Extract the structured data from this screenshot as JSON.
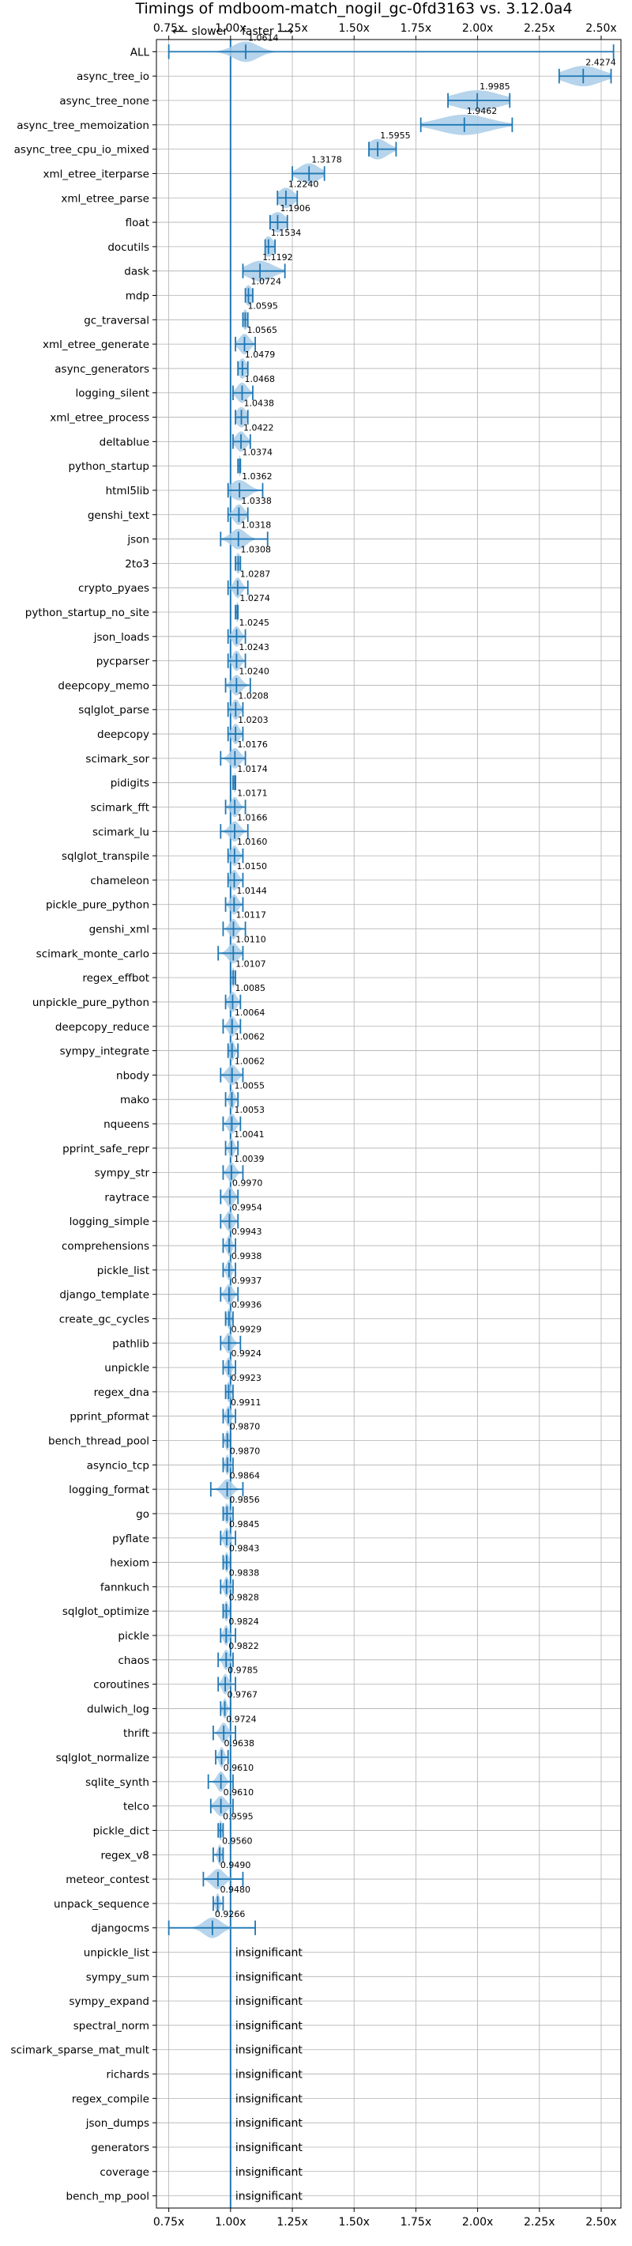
{
  "chart_data": {
    "type": "violin",
    "title": "Timings of mdboom-match_nogil_gc-0fd3163 vs. 3.12.0a4",
    "direction_labels": {
      "slower": "⟵ slower",
      "faster": "faster ⟶"
    },
    "xticks": [
      0.75,
      1.0,
      1.25,
      1.5,
      1.75,
      2.0,
      2.25,
      2.5
    ],
    "xtick_labels": [
      "0.75x",
      "1.00x",
      "1.25x",
      "1.50x",
      "1.75x",
      "2.00x",
      "2.25x",
      "2.50x"
    ],
    "xlim": [
      0.7,
      2.58
    ],
    "reference_x": 1.0,
    "insignificant_label": "insignificant",
    "benchmarks": [
      {
        "name": "ALL",
        "value": 1.0614,
        "min": 0.75,
        "max": 2.55,
        "spread": 0.05
      },
      {
        "name": "async_tree_io",
        "value": 2.4274,
        "min": 2.33,
        "max": 2.54,
        "spread": 0.07
      },
      {
        "name": "async_tree_none",
        "value": 1.9985,
        "min": 1.88,
        "max": 2.13,
        "spread": 0.09
      },
      {
        "name": "async_tree_memoization",
        "value": 1.9462,
        "min": 1.77,
        "max": 2.14,
        "spread": 0.1
      },
      {
        "name": "async_tree_cpu_io_mixed",
        "value": 1.5955,
        "min": 1.56,
        "max": 1.67,
        "spread": 0.04
      },
      {
        "name": "xml_etree_iterparse",
        "value": 1.3178,
        "min": 1.25,
        "max": 1.38,
        "spread": 0.04
      },
      {
        "name": "xml_etree_parse",
        "value": 1.224,
        "min": 1.19,
        "max": 1.27,
        "spread": 0.03
      },
      {
        "name": "float",
        "value": 1.1906,
        "min": 1.16,
        "max": 1.23,
        "spread": 0.03
      },
      {
        "name": "docutils",
        "value": 1.1534,
        "min": 1.14,
        "max": 1.18,
        "spread": 0.02
      },
      {
        "name": "dask",
        "value": 1.1192,
        "min": 1.05,
        "max": 1.22,
        "spread": 0.05
      },
      {
        "name": "mdp",
        "value": 1.0724,
        "min": 1.06,
        "max": 1.09,
        "spread": 0.015
      },
      {
        "name": "gc_traversal",
        "value": 1.0595,
        "min": 1.05,
        "max": 1.07,
        "spread": 0.01
      },
      {
        "name": "xml_etree_generate",
        "value": 1.0565,
        "min": 1.02,
        "max": 1.1,
        "spread": 0.02
      },
      {
        "name": "async_generators",
        "value": 1.0479,
        "min": 1.03,
        "max": 1.07,
        "spread": 0.015
      },
      {
        "name": "logging_silent",
        "value": 1.0468,
        "min": 1.01,
        "max": 1.09,
        "spread": 0.02
      },
      {
        "name": "xml_etree_process",
        "value": 1.0438,
        "min": 1.02,
        "max": 1.07,
        "spread": 0.02
      },
      {
        "name": "deltablue",
        "value": 1.0422,
        "min": 1.01,
        "max": 1.08,
        "spread": 0.02
      },
      {
        "name": "python_startup",
        "value": 1.0374,
        "min": 1.03,
        "max": 1.04,
        "spread": 0.005
      },
      {
        "name": "html5lib",
        "value": 1.0362,
        "min": 0.99,
        "max": 1.13,
        "spread": 0.035
      },
      {
        "name": "genshi_text",
        "value": 1.0338,
        "min": 0.99,
        "max": 1.07,
        "spread": 0.02
      },
      {
        "name": "json",
        "value": 1.0318,
        "min": 0.96,
        "max": 1.15,
        "spread": 0.03
      },
      {
        "name": "2to3",
        "value": 1.0308,
        "min": 1.02,
        "max": 1.04,
        "spread": 0.01
      },
      {
        "name": "crypto_pyaes",
        "value": 1.0287,
        "min": 0.99,
        "max": 1.07,
        "spread": 0.015
      },
      {
        "name": "python_startup_no_site",
        "value": 1.0274,
        "min": 1.02,
        "max": 1.03,
        "spread": 0.005
      },
      {
        "name": "json_loads",
        "value": 1.0245,
        "min": 0.99,
        "max": 1.06,
        "spread": 0.015
      },
      {
        "name": "pycparser",
        "value": 1.0243,
        "min": 0.99,
        "max": 1.06,
        "spread": 0.015
      },
      {
        "name": "deepcopy_memo",
        "value": 1.024,
        "min": 0.98,
        "max": 1.08,
        "spread": 0.02
      },
      {
        "name": "sqlglot_parse",
        "value": 1.0208,
        "min": 0.99,
        "max": 1.05,
        "spread": 0.015
      },
      {
        "name": "deepcopy",
        "value": 1.0203,
        "min": 0.99,
        "max": 1.05,
        "spread": 0.015
      },
      {
        "name": "scimark_sor",
        "value": 1.0176,
        "min": 0.96,
        "max": 1.06,
        "spread": 0.02
      },
      {
        "name": "pidigits",
        "value": 1.0174,
        "min": 1.01,
        "max": 1.02,
        "spread": 0.004
      },
      {
        "name": "scimark_fft",
        "value": 1.0171,
        "min": 0.98,
        "max": 1.06,
        "spread": 0.015
      },
      {
        "name": "scimark_lu",
        "value": 1.0166,
        "min": 0.96,
        "max": 1.07,
        "spread": 0.02
      },
      {
        "name": "sqlglot_transpile",
        "value": 1.016,
        "min": 0.99,
        "max": 1.05,
        "spread": 0.015
      },
      {
        "name": "chameleon",
        "value": 1.015,
        "min": 0.99,
        "max": 1.05,
        "spread": 0.015
      },
      {
        "name": "pickle_pure_python",
        "value": 1.0144,
        "min": 0.98,
        "max": 1.05,
        "spread": 0.015
      },
      {
        "name": "genshi_xml",
        "value": 1.0117,
        "min": 0.97,
        "max": 1.06,
        "spread": 0.015
      },
      {
        "name": "scimark_monte_carlo",
        "value": 1.011,
        "min": 0.95,
        "max": 1.05,
        "spread": 0.02
      },
      {
        "name": "regex_effbot",
        "value": 1.0107,
        "min": 1.0,
        "max": 1.02,
        "spread": 0.006
      },
      {
        "name": "unpickle_pure_python",
        "value": 1.0085,
        "min": 0.98,
        "max": 1.04,
        "spread": 0.015
      },
      {
        "name": "deepcopy_reduce",
        "value": 1.0064,
        "min": 0.97,
        "max": 1.04,
        "spread": 0.015
      },
      {
        "name": "sympy_integrate",
        "value": 1.0062,
        "min": 0.99,
        "max": 1.03,
        "spread": 0.01
      },
      {
        "name": "nbody",
        "value": 1.0062,
        "min": 0.96,
        "max": 1.05,
        "spread": 0.02
      },
      {
        "name": "mako",
        "value": 1.0055,
        "min": 0.98,
        "max": 1.03,
        "spread": 0.01
      },
      {
        "name": "nqueens",
        "value": 1.0053,
        "min": 0.97,
        "max": 1.04,
        "spread": 0.015
      },
      {
        "name": "pprint_safe_repr",
        "value": 1.0041,
        "min": 0.98,
        "max": 1.03,
        "spread": 0.01
      },
      {
        "name": "sympy_str",
        "value": 1.0039,
        "min": 0.97,
        "max": 1.05,
        "spread": 0.015
      },
      {
        "name": "raytrace",
        "value": 0.997,
        "min": 0.96,
        "max": 1.03,
        "spread": 0.015
      },
      {
        "name": "logging_simple",
        "value": 0.9954,
        "min": 0.96,
        "max": 1.03,
        "spread": 0.015
      },
      {
        "name": "comprehensions",
        "value": 0.9943,
        "min": 0.97,
        "max": 1.02,
        "spread": 0.01
      },
      {
        "name": "pickle_list",
        "value": 0.9938,
        "min": 0.97,
        "max": 1.02,
        "spread": 0.01
      },
      {
        "name": "django_template",
        "value": 0.9937,
        "min": 0.96,
        "max": 1.03,
        "spread": 0.015
      },
      {
        "name": "create_gc_cycles",
        "value": 0.9936,
        "min": 0.98,
        "max": 1.01,
        "spread": 0.008
      },
      {
        "name": "pathlib",
        "value": 0.9929,
        "min": 0.96,
        "max": 1.04,
        "spread": 0.015
      },
      {
        "name": "unpickle",
        "value": 0.9924,
        "min": 0.97,
        "max": 1.02,
        "spread": 0.01
      },
      {
        "name": "regex_dna",
        "value": 0.9923,
        "min": 0.98,
        "max": 1.01,
        "spread": 0.008
      },
      {
        "name": "pprint_pformat",
        "value": 0.9911,
        "min": 0.97,
        "max": 1.02,
        "spread": 0.01
      },
      {
        "name": "bench_thread_pool",
        "value": 0.987,
        "min": 0.97,
        "max": 1.0,
        "spread": 0.008
      },
      {
        "name": "asyncio_tcp",
        "value": 0.987,
        "min": 0.97,
        "max": 1.01,
        "spread": 0.008
      },
      {
        "name": "logging_format",
        "value": 0.9864,
        "min": 0.92,
        "max": 1.05,
        "spread": 0.02
      },
      {
        "name": "go",
        "value": 0.9856,
        "min": 0.97,
        "max": 1.01,
        "spread": 0.01
      },
      {
        "name": "pyflate",
        "value": 0.9845,
        "min": 0.96,
        "max": 1.02,
        "spread": 0.012
      },
      {
        "name": "hexiom",
        "value": 0.9843,
        "min": 0.97,
        "max": 1.0,
        "spread": 0.008
      },
      {
        "name": "fannkuch",
        "value": 0.9838,
        "min": 0.96,
        "max": 1.01,
        "spread": 0.01
      },
      {
        "name": "sqlglot_optimize",
        "value": 0.9828,
        "min": 0.97,
        "max": 1.0,
        "spread": 0.008
      },
      {
        "name": "pickle",
        "value": 0.9824,
        "min": 0.96,
        "max": 1.02,
        "spread": 0.01
      },
      {
        "name": "chaos",
        "value": 0.9822,
        "min": 0.95,
        "max": 1.01,
        "spread": 0.012
      },
      {
        "name": "coroutines",
        "value": 0.9785,
        "min": 0.95,
        "max": 1.02,
        "spread": 0.012
      },
      {
        "name": "dulwich_log",
        "value": 0.9767,
        "min": 0.96,
        "max": 1.0,
        "spread": 0.008
      },
      {
        "name": "thrift",
        "value": 0.9724,
        "min": 0.93,
        "max": 1.02,
        "spread": 0.015
      },
      {
        "name": "sqlglot_normalize",
        "value": 0.9638,
        "min": 0.94,
        "max": 0.99,
        "spread": 0.01
      },
      {
        "name": "sqlite_synth",
        "value": 0.961,
        "min": 0.91,
        "max": 1.01,
        "spread": 0.015
      },
      {
        "name": "telco",
        "value": 0.961,
        "min": 0.92,
        "max": 1.01,
        "spread": 0.02
      },
      {
        "name": "pickle_dict",
        "value": 0.9595,
        "min": 0.95,
        "max": 0.97,
        "spread": 0.006
      },
      {
        "name": "regex_v8",
        "value": 0.956,
        "min": 0.93,
        "max": 0.97,
        "spread": 0.008
      },
      {
        "name": "meteor_contest",
        "value": 0.949,
        "min": 0.89,
        "max": 1.05,
        "spread": 0.025
      },
      {
        "name": "unpack_sequence",
        "value": 0.948,
        "min": 0.93,
        "max": 0.97,
        "spread": 0.008
      },
      {
        "name": "djangocms",
        "value": 0.9266,
        "min": 0.75,
        "max": 1.1,
        "spread": 0.035
      },
      {
        "name": "unpickle_list",
        "insignificant": true
      },
      {
        "name": "sympy_sum",
        "insignificant": true
      },
      {
        "name": "sympy_expand",
        "insignificant": true
      },
      {
        "name": "spectral_norm",
        "insignificant": true
      },
      {
        "name": "scimark_sparse_mat_mult",
        "insignificant": true
      },
      {
        "name": "richards",
        "insignificant": true
      },
      {
        "name": "regex_compile",
        "insignificant": true
      },
      {
        "name": "json_dumps",
        "insignificant": true
      },
      {
        "name": "generators",
        "insignificant": true
      },
      {
        "name": "coverage",
        "insignificant": true
      },
      {
        "name": "bench_mp_pool",
        "insignificant": true
      }
    ],
    "grid": true,
    "colors": {
      "violin": "#a9cce8",
      "line": "#1f77b4",
      "median": "#e57373",
      "grid": "#b0b0b0"
    }
  }
}
